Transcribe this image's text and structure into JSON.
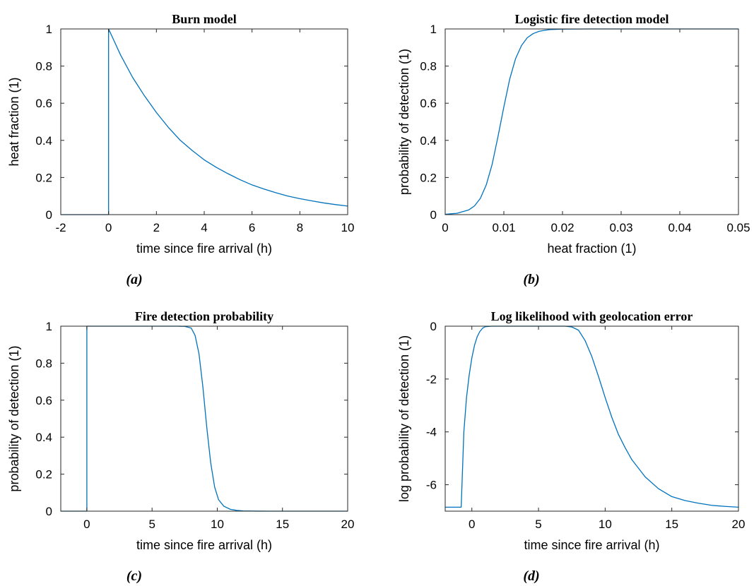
{
  "chart_data": [
    {
      "type": "line",
      "title": "Burn model",
      "caption": "(a)",
      "xlabel": "time since fire arrival (h)",
      "ylabel": "heat fraction (1)",
      "xlim": [
        -2,
        10
      ],
      "ylim": [
        0,
        1
      ],
      "xticks": [
        -2,
        0,
        2,
        4,
        6,
        8,
        10
      ],
      "xtick_labels": [
        "-2",
        "0",
        "2",
        "4",
        "6",
        "8",
        "10"
      ],
      "yticks": [
        0,
        0.2,
        0.4,
        0.6,
        0.8,
        1
      ],
      "ytick_labels": [
        "0",
        "0.2",
        "0.4",
        "0.6",
        "0.8",
        "1"
      ],
      "grid": false,
      "legend": "none",
      "color": "#0072bd",
      "series": [
        {
          "x": [
            -2,
            -1,
            -0.5,
            0,
            0,
            0.25,
            0.5,
            0.75,
            1,
            1.5,
            2,
            2.5,
            3,
            3.5,
            4,
            4.5,
            5,
            5.5,
            6,
            6.5,
            7,
            7.5,
            8,
            8.5,
            9,
            9.5,
            10
          ],
          "y": [
            0,
            0,
            0,
            0,
            1,
            0.93,
            0.86,
            0.8,
            0.74,
            0.64,
            0.55,
            0.47,
            0.4,
            0.345,
            0.295,
            0.255,
            0.22,
            0.188,
            0.16,
            0.138,
            0.118,
            0.1,
            0.086,
            0.074,
            0.063,
            0.054,
            0.046
          ]
        }
      ]
    },
    {
      "type": "line",
      "title": "Logistic fire detection model",
      "caption": "(b)",
      "xlabel": "heat fraction (1)",
      "ylabel": "probability of detection (1)",
      "xlim": [
        0,
        0.05
      ],
      "ylim": [
        0,
        1
      ],
      "xticks": [
        0,
        0.01,
        0.02,
        0.03,
        0.04,
        0.05
      ],
      "xtick_labels": [
        "0",
        "0.01",
        "0.02",
        "0.03",
        "0.04",
        "0.05"
      ],
      "yticks": [
        0,
        0.2,
        0.4,
        0.6,
        0.8,
        1
      ],
      "ytick_labels": [
        "0",
        "0.2",
        "0.4",
        "0.6",
        "0.8",
        "1"
      ],
      "grid": false,
      "legend": "none",
      "color": "#0072bd",
      "series": [
        {
          "x": [
            0,
            0.002,
            0.004,
            0.005,
            0.006,
            0.007,
            0.008,
            0.009,
            0.01,
            0.011,
            0.012,
            0.013,
            0.014,
            0.015,
            0.016,
            0.017,
            0.018,
            0.02,
            0.025,
            0.03,
            0.035,
            0.04,
            0.045,
            0.05
          ],
          "y": [
            0.002,
            0.007,
            0.025,
            0.047,
            0.088,
            0.16,
            0.27,
            0.42,
            0.58,
            0.73,
            0.84,
            0.91,
            0.953,
            0.975,
            0.987,
            0.993,
            0.997,
            0.999,
            1,
            1,
            1,
            1,
            1,
            1
          ]
        }
      ]
    },
    {
      "type": "line",
      "title": "Fire detection probability",
      "caption": "(c)",
      "xlabel": "time since fire arrival (h)",
      "ylabel": "probability of detection (1)",
      "xlim": [
        -2,
        20
      ],
      "ylim": [
        0,
        1
      ],
      "xticks": [
        0,
        5,
        10,
        15,
        20
      ],
      "xtick_labels": [
        "0",
        "5",
        "10",
        "15",
        "20"
      ],
      "yticks": [
        0,
        0.2,
        0.4,
        0.6,
        0.8,
        1
      ],
      "ytick_labels": [
        "0",
        "0.2",
        "0.4",
        "0.6",
        "0.8",
        "1"
      ],
      "grid": false,
      "legend": "none",
      "color": "#0072bd",
      "series": [
        {
          "x": [
            -2,
            -1,
            0,
            0,
            1,
            2,
            3,
            4,
            5,
            6,
            7,
            7.5,
            8,
            8.3,
            8.6,
            8.9,
            9.2,
            9.5,
            9.8,
            10.1,
            10.5,
            11,
            11.5,
            12,
            13,
            14,
            15,
            17,
            20
          ],
          "y": [
            0,
            0,
            0,
            1,
            1,
            1,
            1,
            1,
            1,
            1,
            1,
            0.999,
            0.99,
            0.95,
            0.85,
            0.67,
            0.45,
            0.26,
            0.13,
            0.062,
            0.027,
            0.01,
            0.004,
            0.0015,
            0.0003,
            0,
            0,
            0,
            0
          ]
        }
      ]
    },
    {
      "type": "line",
      "title": "Log likelihood with geolocation error",
      "caption": "(d)",
      "xlabel": "time since fire arrival (h)",
      "ylabel": "log probability of detection (1)",
      "xlim": [
        -2,
        20
      ],
      "ylim": [
        -7,
        0
      ],
      "xticks": [
        0,
        5,
        10,
        15,
        20
      ],
      "xtick_labels": [
        "0",
        "5",
        "10",
        "15",
        "20"
      ],
      "yticks": [
        -6,
        -4,
        -2,
        0
      ],
      "ytick_labels": [
        "-6",
        "-4",
        "-2",
        "0"
      ],
      "grid": false,
      "legend": "none",
      "color": "#0072bd",
      "series": [
        {
          "x": [
            -2,
            -1.5,
            -1,
            -0.9,
            -0.8,
            -0.6,
            -0.4,
            -0.2,
            0,
            0.2,
            0.4,
            0.6,
            0.8,
            1,
            1.5,
            2,
            3,
            4,
            5,
            6,
            7,
            7.5,
            8,
            8.5,
            9,
            9.5,
            10,
            10.5,
            11,
            11.5,
            12,
            13,
            14,
            15,
            16,
            17,
            18,
            19,
            20
          ],
          "y": [
            -6.85,
            -6.85,
            -6.85,
            -6.85,
            -6.85,
            -4.0,
            -2.7,
            -1.85,
            -1.2,
            -0.72,
            -0.4,
            -0.2,
            -0.08,
            -0.02,
            0,
            0,
            0,
            0,
            0,
            0,
            0,
            -0.03,
            -0.15,
            -0.55,
            -1.15,
            -1.9,
            -2.7,
            -3.45,
            -4.1,
            -4.6,
            -5.05,
            -5.7,
            -6.15,
            -6.45,
            -6.6,
            -6.7,
            -6.78,
            -6.82,
            -6.85
          ]
        }
      ]
    }
  ]
}
